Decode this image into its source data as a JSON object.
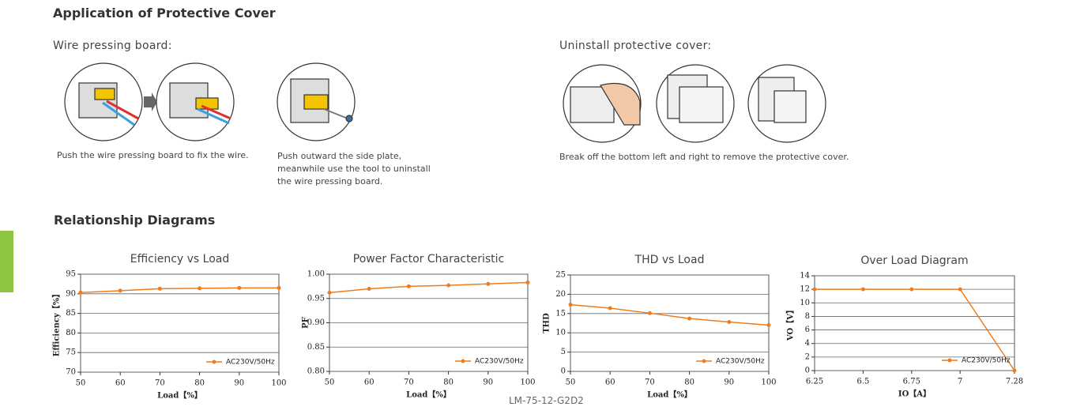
{
  "header": {
    "title": "Application of Protective Cover"
  },
  "wire_section": {
    "title": "Wire pressing board:",
    "captions": [
      {
        "lines": [
          "Push the wire pressing board to fix the wire."
        ]
      },
      {
        "lines": [
          "Push outward the side plate,",
          "meanwhile use the tool to uninstall",
          "the wire pressing board."
        ]
      }
    ]
  },
  "uninstall_section": {
    "title": "Uninstall protective cover:",
    "captions": [
      {
        "lines": [
          "Break off the bottom left and right to remove the protective cover."
        ]
      }
    ]
  },
  "diagrams_section": {
    "title": "Relationship Diagrams"
  },
  "chart_data": [
    {
      "type": "line",
      "title": "Efficiency vs Load",
      "x_label": "Load【%】",
      "y_label": "Efficiency【%】",
      "x": [
        50,
        60,
        70,
        80,
        90,
        100
      ],
      "series": [
        {
          "name": "AC230V/50Hz",
          "color": "#f07c1c",
          "values": [
            90.3,
            90.8,
            91.3,
            91.4,
            91.5,
            91.5
          ]
        }
      ],
      "xlim": [
        50,
        100
      ],
      "xticks": [
        50,
        60,
        70,
        80,
        90,
        100
      ],
      "ylim": [
        70,
        95
      ],
      "yticks": [
        70,
        75,
        80,
        85,
        90,
        95
      ],
      "grid": true
    },
    {
      "type": "line",
      "title": "Power Factor Characteristic",
      "x_label": "Load【%】",
      "y_label": "PF",
      "x": [
        50,
        60,
        70,
        80,
        90,
        100
      ],
      "series": [
        {
          "name": "AC230V/50Hz",
          "color": "#f07c1c",
          "values": [
            0.962,
            0.97,
            0.975,
            0.977,
            0.98,
            0.983
          ]
        }
      ],
      "xlim": [
        50,
        100
      ],
      "xticks": [
        50,
        60,
        70,
        80,
        90,
        100
      ],
      "ylim": [
        0.8,
        1.0
      ],
      "yticks": [
        {
          "value": 0.8,
          "label": "0.80"
        },
        0.85,
        {
          "value": 0.9,
          "label": "0.90"
        },
        0.95,
        {
          "value": 1.0,
          "label": "1.00"
        }
      ],
      "grid": true
    },
    {
      "type": "line",
      "title": "THD vs Load",
      "x_label": "Load【%】",
      "y_label": "THD",
      "x": [
        50,
        60,
        70,
        80,
        90,
        100
      ],
      "series": [
        {
          "name": "AC230V/50Hz",
          "color": "#f07c1c",
          "values": [
            17.3,
            16.4,
            15.1,
            13.7,
            12.8,
            12.0
          ]
        }
      ],
      "xlim": [
        50,
        100
      ],
      "xticks": [
        50,
        60,
        70,
        80,
        90,
        100
      ],
      "ylim": [
        0,
        25
      ],
      "yticks": [
        0,
        5,
        10,
        15,
        20,
        25
      ],
      "grid": true
    },
    {
      "type": "line",
      "title": "Over Load Diagram",
      "x_label": "IO【A】",
      "y_label": "VO【V】",
      "x": [
        6.25,
        6.5,
        6.75,
        7,
        7.28
      ],
      "series": [
        {
          "name": "AC230V/50Hz",
          "color": "#f07c1c",
          "values": [
            12,
            12,
            12,
            12,
            0
          ]
        }
      ],
      "xlim": [
        6.25,
        7.28
      ],
      "xticks": [
        6.25,
        6.5,
        6.75,
        7,
        7.28
      ],
      "ylim": [
        0,
        14
      ],
      "yticks": [
        0,
        2,
        4,
        6,
        8,
        10,
        12,
        14
      ],
      "grid": true
    }
  ],
  "footer": {
    "model": "LM-75-12-G2D2"
  }
}
